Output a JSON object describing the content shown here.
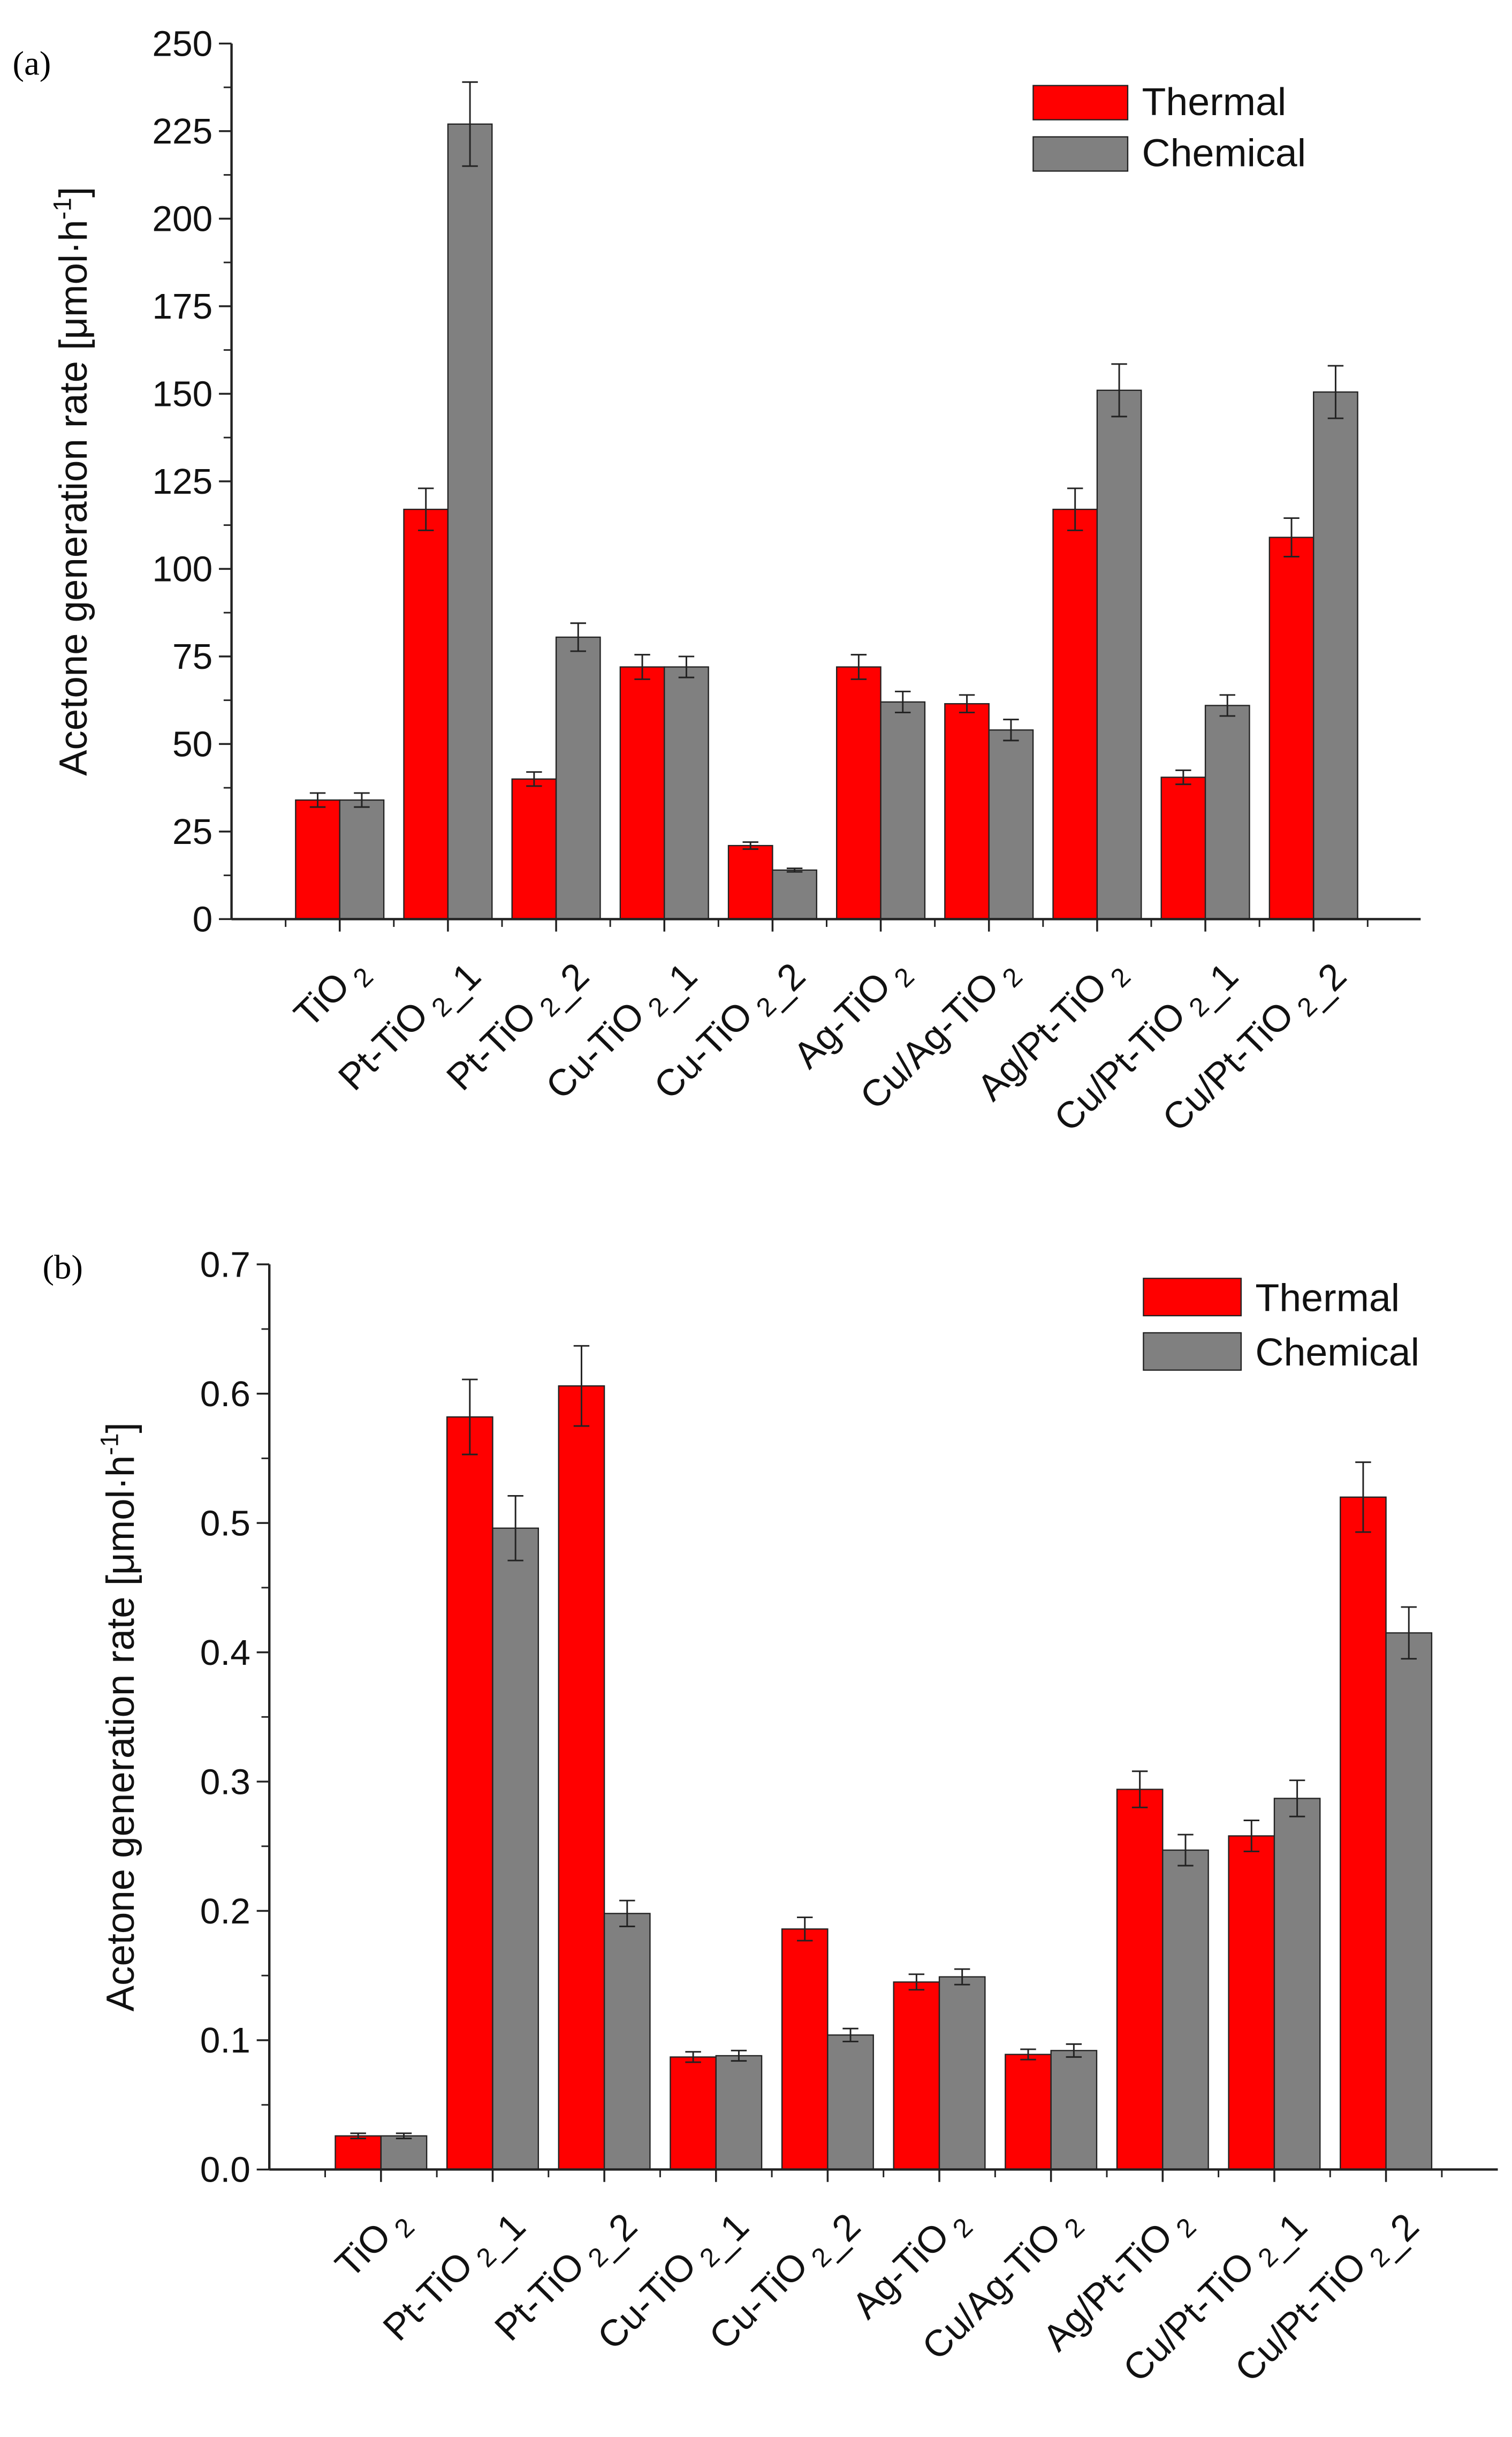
{
  "chart_data": [
    {
      "panel": "(a)",
      "type": "bar",
      "title": "",
      "xlabel": "",
      "ylabel": "Acetone generation rate [μmol·h⁻¹]",
      "ylabel_main": "Acetone generation rate [μmol·h",
      "ylabel_sup": "-1",
      "ylabel_end": "]",
      "ylim": [
        0,
        250
      ],
      "ytick_step": 25,
      "grid": false,
      "legend_position": "top-right",
      "categories": [
        "TiO2",
        "Pt-TiO2_1",
        "Pt-TiO2_2",
        "Cu-TiO2_1",
        "Cu-TiO2_2",
        "Ag-TiO2",
        "Cu/Ag-TiO2",
        "Ag/Pt-TiO2",
        "Cu/Pt-TiO2_1",
        "Cu/Pt-TiO2_2"
      ],
      "series": [
        {
          "name": "Thermal",
          "color": "#ff0000",
          "values": [
            34,
            117,
            40,
            72,
            21,
            72,
            61.5,
            117,
            40.5,
            109
          ],
          "errors": [
            2,
            6,
            2,
            3.5,
            1,
            3.5,
            2.5,
            6,
            2,
            5.5
          ]
        },
        {
          "name": "Chemical",
          "color": "#808080",
          "values": [
            34,
            227,
            80.5,
            72,
            14,
            62,
            54,
            151,
            61,
            150.5
          ],
          "errors": [
            2,
            12,
            4,
            3,
            0.5,
            3,
            3,
            7.5,
            3,
            7.5
          ]
        }
      ]
    },
    {
      "panel": "(b)",
      "type": "bar",
      "title": "",
      "xlabel": "",
      "ylabel": "Acetone generation rate [μmol·h⁻¹]",
      "ylabel_main": "Acetone generation rate [μmol·h",
      "ylabel_sup": "-1",
      "ylabel_end": "]",
      "ylim": [
        0,
        0.7
      ],
      "ytick_step": 0.1,
      "grid": false,
      "legend_position": "top-right",
      "categories": [
        "TiO2",
        "Pt-TiO2_1",
        "Pt-TiO2_2",
        "Cu-TiO2_1",
        "Cu-TiO2_2",
        "Ag-TiO2",
        "Cu/Ag-TiO2",
        "Ag/Pt-TiO2",
        "Cu/Pt-TiO2_1",
        "Cu/Pt-TiO2_2"
      ],
      "series": [
        {
          "name": "Thermal",
          "color": "#ff0000",
          "values": [
            0.026,
            0.582,
            0.606,
            0.087,
            0.186,
            0.145,
            0.089,
            0.294,
            0.258,
            0.52
          ],
          "errors": [
            0.002,
            0.029,
            0.031,
            0.004,
            0.009,
            0.006,
            0.004,
            0.014,
            0.012,
            0.027
          ]
        },
        {
          "name": "Chemical",
          "color": "#808080",
          "values": [
            0.026,
            0.496,
            0.198,
            0.088,
            0.104,
            0.149,
            0.092,
            0.247,
            0.287,
            0.415
          ],
          "errors": [
            0.002,
            0.025,
            0.01,
            0.004,
            0.005,
            0.006,
            0.005,
            0.012,
            0.014,
            0.02
          ]
        }
      ]
    }
  ]
}
